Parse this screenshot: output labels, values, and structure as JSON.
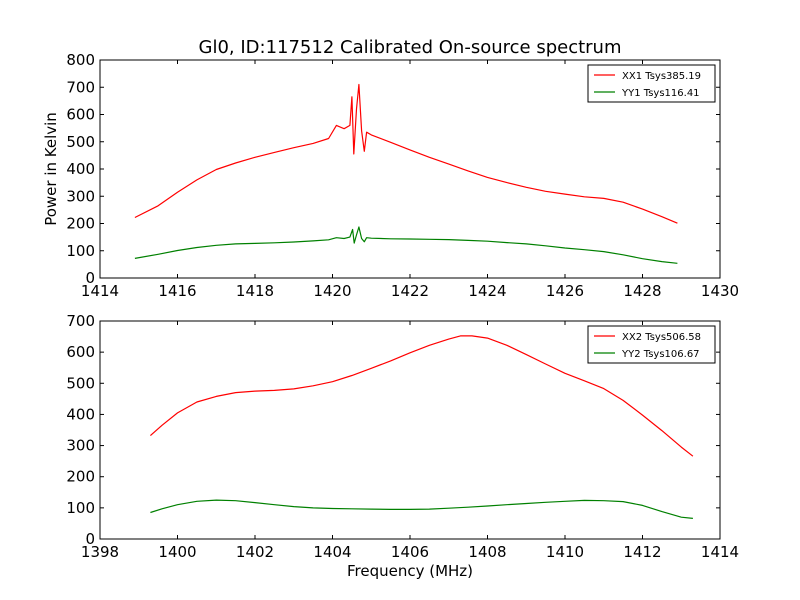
{
  "figure": {
    "title": "Gl0, ID:117512 Calibrated On-source spectrum"
  },
  "chart_data": [
    {
      "type": "line",
      "title": "Gl0, ID:117512 Calibrated On-source spectrum",
      "xlabel": "",
      "ylabel": "Power in Kelvin",
      "xlim": [
        1414,
        1430
      ],
      "ylim": [
        0,
        800
      ],
      "xticks": [
        1414,
        1416,
        1418,
        1420,
        1422,
        1424,
        1426,
        1428,
        1430
      ],
      "yticks": [
        0,
        100,
        200,
        300,
        400,
        500,
        600,
        700,
        800
      ],
      "grid": false,
      "legend_position": "top-right",
      "series": [
        {
          "name": "XX1 Tsys385.19",
          "color": "#ff0000",
          "points": [
            [
              1414.9,
              222
            ],
            [
              1415.5,
              265
            ],
            [
              1416,
              315
            ],
            [
              1416.5,
              360
            ],
            [
              1417,
              398
            ],
            [
              1417.5,
              422
            ],
            [
              1418,
              443
            ],
            [
              1418.5,
              461
            ],
            [
              1419,
              478
            ],
            [
              1419.5,
              494
            ],
            [
              1419.9,
              512
            ],
            [
              1420.1,
              560
            ],
            [
              1420.3,
              548
            ],
            [
              1420.45,
              560
            ],
            [
              1420.5,
              665
            ],
            [
              1420.55,
              455
            ],
            [
              1420.62,
              620
            ],
            [
              1420.68,
              710
            ],
            [
              1420.75,
              540
            ],
            [
              1420.82,
              465
            ],
            [
              1420.88,
              535
            ],
            [
              1421.0,
              525
            ],
            [
              1421.5,
              498
            ],
            [
              1422,
              470
            ],
            [
              1422.5,
              443
            ],
            [
              1423,
              418
            ],
            [
              1423.5,
              393
            ],
            [
              1424,
              369
            ],
            [
              1424.5,
              350
            ],
            [
              1425,
              333
            ],
            [
              1425.5,
              318
            ],
            [
              1426,
              308
            ],
            [
              1426.5,
              298
            ],
            [
              1427,
              292
            ],
            [
              1427.5,
              278
            ],
            [
              1428,
              253
            ],
            [
              1428.5,
              225
            ],
            [
              1428.9,
              201
            ]
          ]
        },
        {
          "name": "YY1 Tsys116.41",
          "color": "#008000",
          "points": [
            [
              1414.9,
              72
            ],
            [
              1415.5,
              87
            ],
            [
              1416,
              101
            ],
            [
              1416.5,
              112
            ],
            [
              1417,
              120
            ],
            [
              1417.5,
              125
            ],
            [
              1418,
              127
            ],
            [
              1418.5,
              129
            ],
            [
              1419,
              132
            ],
            [
              1419.5,
              136
            ],
            [
              1419.9,
              140
            ],
            [
              1420.1,
              148
            ],
            [
              1420.3,
              145
            ],
            [
              1420.45,
              150
            ],
            [
              1420.52,
              178
            ],
            [
              1420.56,
              128
            ],
            [
              1420.62,
              158
            ],
            [
              1420.68,
              187
            ],
            [
              1420.75,
              145
            ],
            [
              1420.82,
              133
            ],
            [
              1420.88,
              148
            ],
            [
              1421,
              146
            ],
            [
              1421.5,
              144
            ],
            [
              1422,
              143
            ],
            [
              1422.5,
              142
            ],
            [
              1423,
              141
            ],
            [
              1423.5,
              138
            ],
            [
              1424,
              135
            ],
            [
              1424.5,
              130
            ],
            [
              1425,
              125
            ],
            [
              1425.5,
              118
            ],
            [
              1426,
              110
            ],
            [
              1426.5,
              104
            ],
            [
              1427,
              97
            ],
            [
              1427.5,
              85
            ],
            [
              1428,
              71
            ],
            [
              1428.5,
              60
            ],
            [
              1428.9,
              54
            ]
          ]
        }
      ]
    },
    {
      "type": "line",
      "title": "",
      "xlabel": "Frequency (MHz)",
      "ylabel": "",
      "xlim": [
        1398,
        1414
      ],
      "ylim": [
        0,
        700
      ],
      "xticks": [
        1398,
        1400,
        1402,
        1404,
        1406,
        1408,
        1410,
        1412,
        1414
      ],
      "yticks": [
        0,
        100,
        200,
        300,
        400,
        500,
        600,
        700
      ],
      "grid": false,
      "legend_position": "top-right",
      "series": [
        {
          "name": "XX2 Tsys506.58",
          "color": "#ff0000",
          "points": [
            [
              1399.3,
              332
            ],
            [
              1399.6,
              365
            ],
            [
              1400,
              405
            ],
            [
              1400.5,
              440
            ],
            [
              1401,
              458
            ],
            [
              1401.5,
              470
            ],
            [
              1402,
              475
            ],
            [
              1402.5,
              477
            ],
            [
              1403,
              482
            ],
            [
              1403.5,
              492
            ],
            [
              1404,
              505
            ],
            [
              1404.5,
              525
            ],
            [
              1405,
              548
            ],
            [
              1405.5,
              572
            ],
            [
              1406,
              598
            ],
            [
              1406.5,
              622
            ],
            [
              1407,
              642
            ],
            [
              1407.3,
              652
            ],
            [
              1407.6,
              652
            ],
            [
              1408,
              645
            ],
            [
              1408.5,
              622
            ],
            [
              1409,
              592
            ],
            [
              1409.5,
              562
            ],
            [
              1410,
              532
            ],
            [
              1410.5,
              508
            ],
            [
              1411,
              483
            ],
            [
              1411.5,
              445
            ],
            [
              1412,
              398
            ],
            [
              1412.5,
              348
            ],
            [
              1413,
              295
            ],
            [
              1413.3,
              266
            ]
          ]
        },
        {
          "name": "YY2 Tsys106.67",
          "color": "#008000",
          "points": [
            [
              1399.3,
              85
            ],
            [
              1399.6,
              97
            ],
            [
              1400,
              110
            ],
            [
              1400.5,
              121
            ],
            [
              1401,
              125
            ],
            [
              1401.5,
              123
            ],
            [
              1402,
              117
            ],
            [
              1402.5,
              110
            ],
            [
              1403,
              104
            ],
            [
              1403.5,
              100
            ],
            [
              1404,
              98
            ],
            [
              1404.5,
              97
            ],
            [
              1405,
              96
            ],
            [
              1405.5,
              95
            ],
            [
              1406,
              95
            ],
            [
              1406.5,
              96
            ],
            [
              1407,
              99
            ],
            [
              1407.5,
              102
            ],
            [
              1408,
              106
            ],
            [
              1408.5,
              110
            ],
            [
              1409,
              114
            ],
            [
              1409.5,
              118
            ],
            [
              1410,
              121
            ],
            [
              1410.5,
              124
            ],
            [
              1411,
              123
            ],
            [
              1411.5,
              120
            ],
            [
              1412,
              108
            ],
            [
              1412.5,
              88
            ],
            [
              1413,
              70
            ],
            [
              1413.3,
              66
            ]
          ]
        }
      ]
    }
  ]
}
